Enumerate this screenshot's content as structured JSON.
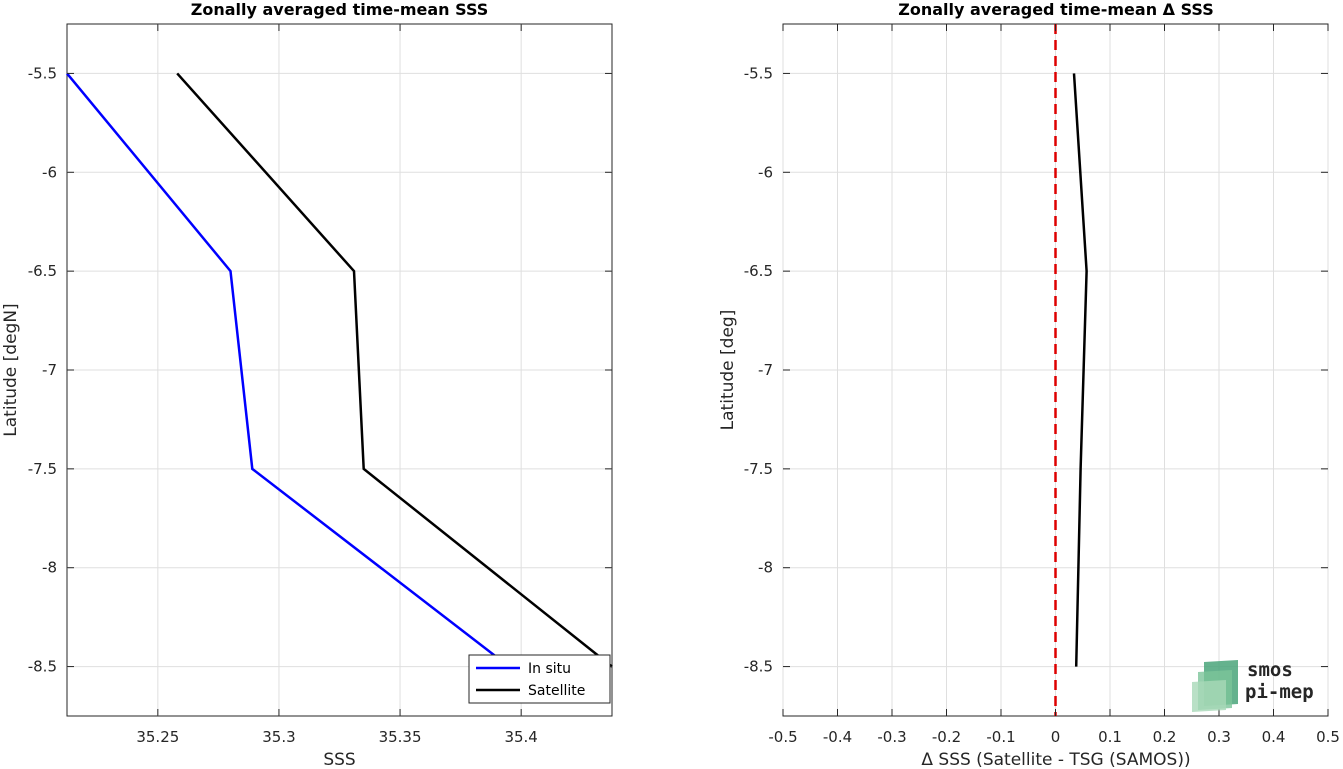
{
  "chart_data": [
    {
      "type": "line",
      "title": "Zonally averaged time-mean SSS",
      "xlabel": "SSS",
      "ylabel": "Latitude [degN]",
      "xlim": [
        35.2125,
        35.4375
      ],
      "ylim": [
        -8.75,
        -5.25
      ],
      "x_ticks": [
        "35.25",
        "35.3",
        "35.35",
        "35.4"
      ],
      "y_ticks": [
        "-5.5",
        "-6",
        "-6.5",
        "-7",
        "-7.5",
        "-8",
        "-8.5"
      ],
      "grid": true,
      "legend_position": "bottom-right",
      "series": [
        {
          "name": "In situ",
          "color": "#0000ff",
          "points": [
            {
              "x": 35.2125,
              "y": -5.5
            },
            {
              "x": 35.28,
              "y": -6.5
            },
            {
              "x": 35.289,
              "y": -7.5
            },
            {
              "x": 35.395,
              "y": -8.5
            }
          ]
        },
        {
          "name": "Satellite",
          "color": "#000000",
          "points": [
            {
              "x": 35.258,
              "y": -5.5
            },
            {
              "x": 35.331,
              "y": -6.5
            },
            {
              "x": 35.335,
              "y": -7.5
            },
            {
              "x": 35.4375,
              "y": -8.5
            }
          ]
        }
      ]
    },
    {
      "type": "line",
      "title": "Zonally averaged time-mean Δ SSS",
      "xlabel": "Δ SSS (Satellite - TSG (SAMOS))",
      "ylabel": "Latitude [deg]",
      "xlim": [
        -0.5,
        0.5
      ],
      "ylim": [
        -8.75,
        -5.25
      ],
      "x_ticks": [
        "-0.5",
        "-0.4",
        "-0.3",
        "-0.2",
        "-0.1",
        "0",
        "0.1",
        "0.2",
        "0.3",
        "0.4",
        "0.5"
      ],
      "y_ticks": [
        "-5.5",
        "-6",
        "-6.5",
        "-7",
        "-7.5",
        "-8",
        "-8.5"
      ],
      "grid": true,
      "reference_line": {
        "x": 0,
        "color": "#dd0000",
        "style": "dashed"
      },
      "series": [
        {
          "color": "#000000",
          "points": [
            {
              "x": 0.034,
              "y": -5.5
            },
            {
              "x": 0.057,
              "y": -6.5
            },
            {
              "x": 0.046,
              "y": -7.5
            },
            {
              "x": 0.038,
              "y": -8.5
            }
          ]
        }
      ]
    }
  ],
  "logo": {
    "line1": "smos",
    "line2": "pi-mep",
    "color_dark": "#4aa57a",
    "color_light": "#a8d8b8"
  }
}
